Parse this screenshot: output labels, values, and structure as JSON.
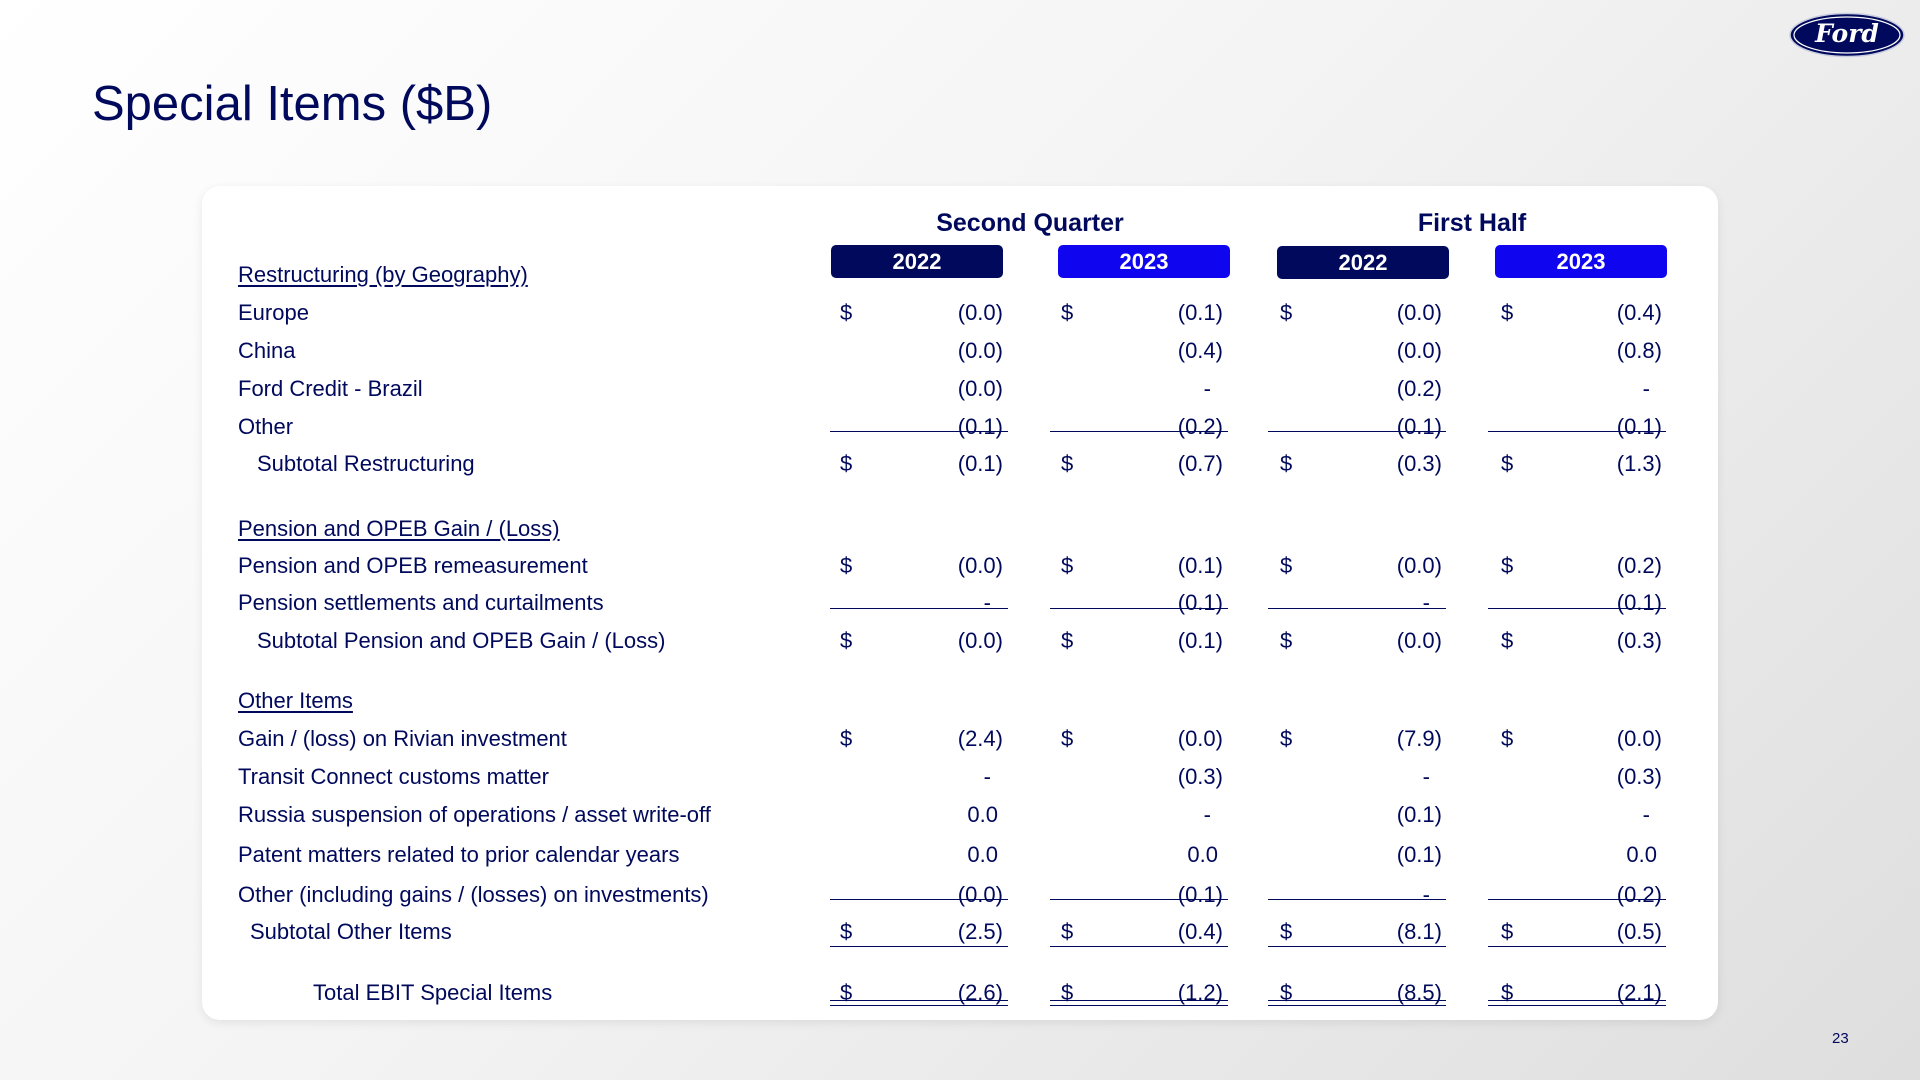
{
  "brand": {
    "logo_text": "Ford",
    "navy": "#00095b",
    "blue": "#0f06ef"
  },
  "slide": {
    "title": "Special Items ($B)",
    "page_number": "23"
  },
  "groups": [
    {
      "label": "Second Quarter",
      "years": [
        "2022",
        "2023"
      ]
    },
    {
      "label": "First Half",
      "years": [
        "2022",
        "2023"
      ]
    }
  ],
  "rows": [
    {
      "label": "Restructuring (by Geography)",
      "kind": "section",
      "values": [
        "",
        "",
        "",
        ""
      ],
      "dollar": false
    },
    {
      "label": "Europe",
      "kind": "item",
      "values": [
        "(0.0)",
        "(0.1)",
        "(0.0)",
        "(0.4)"
      ],
      "dollar": true
    },
    {
      "label": "China",
      "kind": "item",
      "values": [
        "(0.0)",
        "(0.4)",
        "(0.0)",
        "(0.8)"
      ],
      "dollar": false
    },
    {
      "label": "Ford Credit - Brazil",
      "kind": "item",
      "values": [
        "(0.0)",
        "-",
        "(0.2)",
        "-"
      ],
      "dollar": false
    },
    {
      "label": "Other",
      "kind": "item",
      "values": [
        "(0.1)",
        "(0.2)",
        "(0.1)",
        "(0.1)"
      ],
      "dollar": false
    },
    {
      "label": "Subtotal Restructuring",
      "kind": "subtotal",
      "values": [
        "(0.1)",
        "(0.7)",
        "(0.3)",
        "(1.3)"
      ],
      "dollar": true
    },
    {
      "label": "Pension and OPEB Gain / (Loss)",
      "kind": "section",
      "values": [
        "",
        "",
        "",
        ""
      ],
      "dollar": false
    },
    {
      "label": "Pension and OPEB remeasurement",
      "kind": "item",
      "values": [
        "(0.0)",
        "(0.1)",
        "(0.0)",
        "(0.2)"
      ],
      "dollar": true
    },
    {
      "label": "Pension settlements and curtailments",
      "kind": "item",
      "values": [
        "-",
        "(0.1)",
        "-",
        "(0.1)"
      ],
      "dollar": false
    },
    {
      "label": "Subtotal Pension and OPEB Gain / (Loss)",
      "kind": "subtotal",
      "values": [
        "(0.0)",
        "(0.1)",
        "(0.0)",
        "(0.3)"
      ],
      "dollar": true
    },
    {
      "label": "Other Items",
      "kind": "section",
      "values": [
        "",
        "",
        "",
        ""
      ],
      "dollar": false
    },
    {
      "label": "Gain / (loss) on Rivian investment",
      "kind": "item",
      "values": [
        "(2.4)",
        "(0.0)",
        "(7.9)",
        "(0.0)"
      ],
      "dollar": true
    },
    {
      "label": "Transit Connect customs matter",
      "kind": "item",
      "values": [
        "-",
        "(0.3)",
        "-",
        "(0.3)"
      ],
      "dollar": false
    },
    {
      "label": "Russia suspension of operations / asset write-off",
      "kind": "item",
      "values": [
        "0.0",
        "-",
        "(0.1)",
        "-"
      ],
      "dollar": false
    },
    {
      "label": "Patent matters related to prior calendar years",
      "kind": "item",
      "values": [
        "0.0",
        "0.0",
        "(0.1)",
        "0.0"
      ],
      "dollar": false
    },
    {
      "label": "Other (including gains / (losses) on investments)",
      "kind": "item",
      "values": [
        "(0.0)",
        "(0.1)",
        "-",
        "(0.2)"
      ],
      "dollar": false
    },
    {
      "label": "Subtotal Other Items",
      "kind": "subtotal",
      "values": [
        "(2.5)",
        "(0.4)",
        "(8.1)",
        "(0.5)"
      ],
      "dollar": true
    },
    {
      "label": "Total EBIT Special Items",
      "kind": "total",
      "values": [
        "(2.6)",
        "(1.2)",
        "(8.5)",
        "(2.1)"
      ],
      "dollar": true
    }
  ],
  "currency_symbol": "$"
}
